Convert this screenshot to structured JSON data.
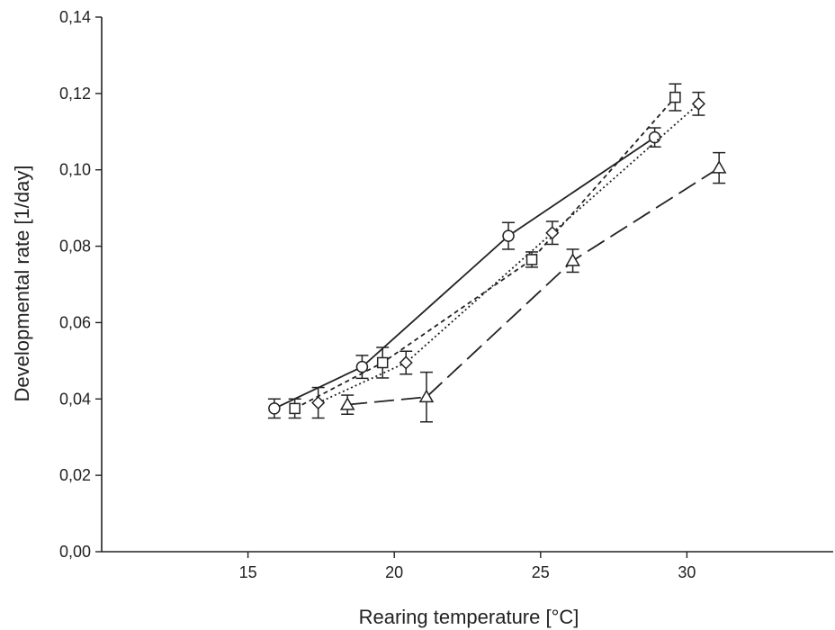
{
  "chart_data": {
    "type": "line",
    "title": "",
    "xlabel": "Rearing temperature [°C]",
    "ylabel": "Developmental rate [1/day]",
    "xlim": [
      10,
      35
    ],
    "ylim": [
      0,
      0.14
    ],
    "xticks": [
      15,
      20,
      25,
      30
    ],
    "xtick_labels": [
      "15",
      "20",
      "25",
      "30"
    ],
    "yticks": [
      0,
      0.02,
      0.04,
      0.06,
      0.08,
      0.1,
      0.12,
      0.14
    ],
    "ytick_labels": [
      "0,00",
      "0,02",
      "0,04",
      "0,06",
      "0,08",
      "0,10",
      "0,12",
      "0,14"
    ],
    "grid": false,
    "legend": "none",
    "series": [
      {
        "marker": "circle",
        "line_style": "solid",
        "color": "#222222",
        "x": [
          15.9,
          18.9,
          23.9,
          28.9
        ],
        "y": [
          0.0375,
          0.0484,
          0.0827,
          0.1085
        ],
        "err": [
          0.0025,
          0.003,
          0.0035,
          0.0025
        ]
      },
      {
        "marker": "square",
        "line_style": "short-dash",
        "color": "#222222",
        "x": [
          16.6,
          19.6,
          24.7,
          29.6
        ],
        "y": [
          0.0375,
          0.0495,
          0.0765,
          0.119
        ],
        "err": [
          0.0025,
          0.004,
          0.002,
          0.0035
        ]
      },
      {
        "marker": "diamond",
        "line_style": "dotted",
        "color": "#222222",
        "x": [
          17.4,
          20.4,
          25.4,
          30.4
        ],
        "y": [
          0.039,
          0.0495,
          0.0835,
          0.1173
        ],
        "err": [
          0.004,
          0.003,
          0.003,
          0.003
        ]
      },
      {
        "marker": "triangle",
        "line_style": "long-dash",
        "color": "#222222",
        "x": [
          18.4,
          21.1,
          26.1,
          31.1
        ],
        "y": [
          0.0385,
          0.0405,
          0.0762,
          0.1005
        ],
        "err": [
          0.0025,
          0.0065,
          0.003,
          0.004
        ]
      }
    ]
  }
}
